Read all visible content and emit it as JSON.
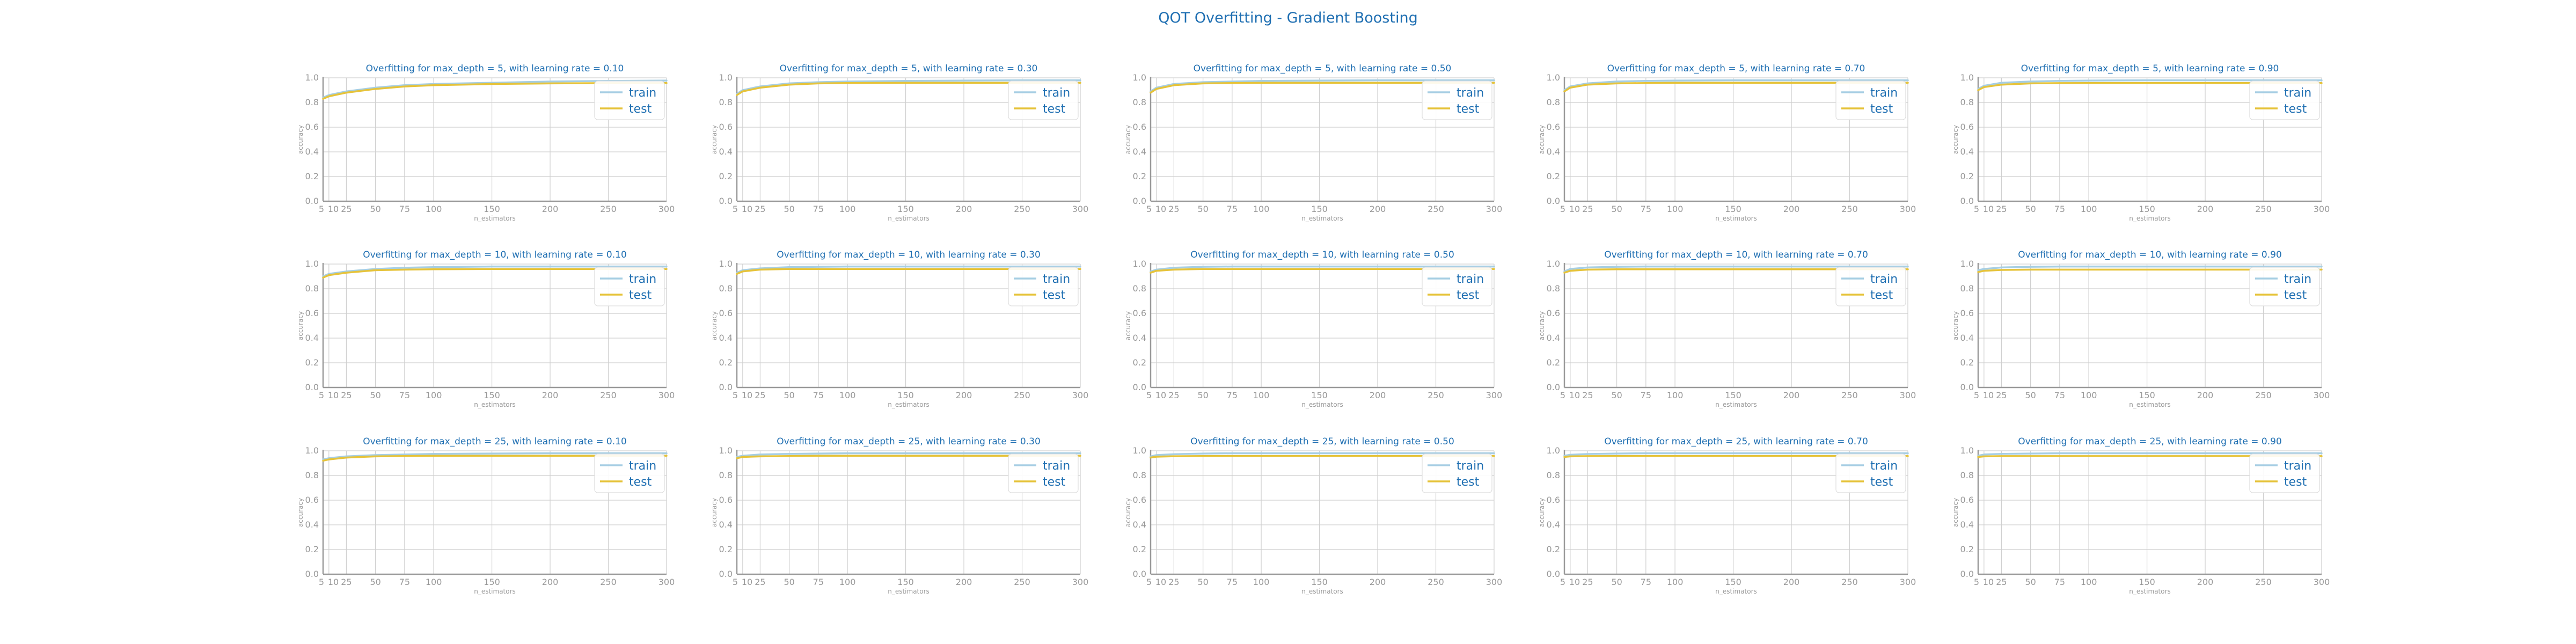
{
  "chart_data": {
    "title": "QOT Overfitting - Gradient Boosting",
    "type": "line",
    "rows": 3,
    "cols": 5,
    "xlabel": "n_estimators",
    "ylabel": "accuracy",
    "xlim": [
      5,
      300
    ],
    "ylim": [
      0,
      1.0
    ],
    "x_ticks": [
      5,
      10,
      25,
      50,
      75,
      100,
      150,
      200,
      250,
      300
    ],
    "y_ticks": [
      0.0,
      0.2,
      0.4,
      0.6,
      0.8,
      1.0
    ],
    "y_tick_labels": [
      "0.0",
      "0.2",
      "0.4",
      "0.6",
      "0.8",
      "1.0"
    ],
    "grid": true,
    "legend_position": "upper-right",
    "colors": {
      "train": "#a6cee3",
      "test": "#e6c33a"
    },
    "x": [
      5,
      10,
      25,
      50,
      75,
      100,
      150,
      200,
      250,
      300
    ],
    "panels": [
      {
        "title": "Overfitting for max_depth = 5, with learning rate = 0.10",
        "series": [
          {
            "name": "train",
            "values": [
              0.84,
              0.86,
              0.89,
              0.92,
              0.94,
              0.95,
              0.96,
              0.97,
              0.975,
              0.978
            ]
          },
          {
            "name": "test",
            "values": [
              0.83,
              0.85,
              0.88,
              0.91,
              0.93,
              0.94,
              0.95,
              0.955,
              0.957,
              0.958
            ]
          }
        ]
      },
      {
        "title": "Overfitting for max_depth = 5, with learning rate = 0.30",
        "series": [
          {
            "name": "train",
            "values": [
              0.87,
              0.9,
              0.93,
              0.955,
              0.965,
              0.97,
              0.975,
              0.978,
              0.98,
              0.98
            ]
          },
          {
            "name": "test",
            "values": [
              0.86,
              0.89,
              0.92,
              0.945,
              0.955,
              0.958,
              0.96,
              0.96,
              0.96,
              0.96
            ]
          }
        ]
      },
      {
        "title": "Overfitting for max_depth = 5, with learning rate = 0.50",
        "series": [
          {
            "name": "train",
            "values": [
              0.89,
              0.92,
              0.95,
              0.965,
              0.97,
              0.975,
              0.978,
              0.98,
              0.98,
              0.98
            ]
          },
          {
            "name": "test",
            "values": [
              0.88,
              0.91,
              0.94,
              0.955,
              0.958,
              0.96,
              0.96,
              0.96,
              0.96,
              0.96
            ]
          }
        ]
      },
      {
        "title": "Overfitting for max_depth = 5, with learning rate = 0.70",
        "series": [
          {
            "name": "train",
            "values": [
              0.9,
              0.93,
              0.955,
              0.97,
              0.975,
              0.978,
              0.98,
              0.98,
              0.98,
              0.98
            ]
          },
          {
            "name": "test",
            "values": [
              0.89,
              0.92,
              0.945,
              0.955,
              0.958,
              0.96,
              0.96,
              0.96,
              0.96,
              0.96
            ]
          }
        ]
      },
      {
        "title": "Overfitting for max_depth = 5, with learning rate = 0.90",
        "series": [
          {
            "name": "train",
            "values": [
              0.91,
              0.935,
              0.96,
              0.97,
              0.975,
              0.978,
              0.98,
              0.98,
              0.98,
              0.98
            ]
          },
          {
            "name": "test",
            "values": [
              0.9,
              0.925,
              0.945,
              0.955,
              0.957,
              0.958,
              0.958,
              0.958,
              0.958,
              0.958
            ]
          }
        ]
      },
      {
        "title": "Overfitting for max_depth = 10, with learning rate = 0.10",
        "series": [
          {
            "name": "train",
            "values": [
              0.9,
              0.92,
              0.94,
              0.96,
              0.97,
              0.975,
              0.98,
              0.98,
              0.98,
              0.98
            ]
          },
          {
            "name": "test",
            "values": [
              0.89,
              0.91,
              0.93,
              0.95,
              0.955,
              0.958,
              0.96,
              0.96,
              0.96,
              0.96
            ]
          }
        ]
      },
      {
        "title": "Overfitting for max_depth = 10, with learning rate = 0.30",
        "series": [
          {
            "name": "train",
            "values": [
              0.93,
              0.95,
              0.965,
              0.975,
              0.978,
              0.98,
              0.98,
              0.98,
              0.98,
              0.98
            ]
          },
          {
            "name": "test",
            "values": [
              0.92,
              0.94,
              0.955,
              0.96,
              0.96,
              0.96,
              0.96,
              0.96,
              0.96,
              0.96
            ]
          }
        ]
      },
      {
        "title": "Overfitting for max_depth = 10, with learning rate = 0.50",
        "series": [
          {
            "name": "train",
            "values": [
              0.94,
              0.955,
              0.97,
              0.978,
              0.98,
              0.98,
              0.98,
              0.98,
              0.98,
              0.98
            ]
          },
          {
            "name": "test",
            "values": [
              0.93,
              0.945,
              0.955,
              0.96,
              0.96,
              0.96,
              0.96,
              0.96,
              0.96,
              0.96
            ]
          }
        ]
      },
      {
        "title": "Overfitting for max_depth = 10, with learning rate = 0.70",
        "series": [
          {
            "name": "train",
            "values": [
              0.94,
              0.96,
              0.972,
              0.978,
              0.98,
              0.98,
              0.98,
              0.98,
              0.98,
              0.98
            ]
          },
          {
            "name": "test",
            "values": [
              0.93,
              0.945,
              0.955,
              0.958,
              0.958,
              0.958,
              0.958,
              0.958,
              0.958,
              0.958
            ]
          }
        ]
      },
      {
        "title": "Overfitting for max_depth = 10, with learning rate = 0.90",
        "series": [
          {
            "name": "train",
            "values": [
              0.95,
              0.96,
              0.972,
              0.978,
              0.98,
              0.98,
              0.98,
              0.98,
              0.98,
              0.98
            ]
          },
          {
            "name": "test",
            "values": [
              0.935,
              0.945,
              0.952,
              0.955,
              0.955,
              0.955,
              0.955,
              0.955,
              0.955,
              0.955
            ]
          }
        ]
      },
      {
        "title": "Overfitting for max_depth = 25, with learning rate = 0.10",
        "series": [
          {
            "name": "train",
            "values": [
              0.93,
              0.94,
              0.955,
              0.965,
              0.97,
              0.975,
              0.978,
              0.98,
              0.98,
              0.98
            ]
          },
          {
            "name": "test",
            "values": [
              0.92,
              0.93,
              0.945,
              0.955,
              0.958,
              0.96,
              0.96,
              0.96,
              0.96,
              0.96
            ]
          }
        ]
      },
      {
        "title": "Overfitting for max_depth = 25, with learning rate = 0.30",
        "series": [
          {
            "name": "train",
            "values": [
              0.95,
              0.96,
              0.97,
              0.975,
              0.978,
              0.98,
              0.98,
              0.98,
              0.98,
              0.98
            ]
          },
          {
            "name": "test",
            "values": [
              0.94,
              0.95,
              0.955,
              0.958,
              0.96,
              0.96,
              0.96,
              0.96,
              0.96,
              0.96
            ]
          }
        ]
      },
      {
        "title": "Overfitting for max_depth = 25, with learning rate = 0.50",
        "series": [
          {
            "name": "train",
            "values": [
              0.955,
              0.965,
              0.972,
              0.978,
              0.98,
              0.98,
              0.98,
              0.98,
              0.98,
              0.98
            ]
          },
          {
            "name": "test",
            "values": [
              0.945,
              0.952,
              0.956,
              0.958,
              0.958,
              0.958,
              0.958,
              0.958,
              0.958,
              0.958
            ]
          }
        ]
      },
      {
        "title": "Overfitting for max_depth = 25, with learning rate = 0.70",
        "series": [
          {
            "name": "train",
            "values": [
              0.96,
              0.968,
              0.974,
              0.978,
              0.98,
              0.98,
              0.98,
              0.98,
              0.98,
              0.98
            ]
          },
          {
            "name": "test",
            "values": [
              0.95,
              0.955,
              0.957,
              0.958,
              0.958,
              0.958,
              0.958,
              0.958,
              0.958,
              0.958
            ]
          }
        ]
      },
      {
        "title": "Overfitting for max_depth = 25, with learning rate = 0.90",
        "series": [
          {
            "name": "train",
            "values": [
              0.96,
              0.97,
              0.975,
              0.978,
              0.98,
              0.98,
              0.98,
              0.98,
              0.98,
              0.98
            ]
          },
          {
            "name": "test",
            "values": [
              0.95,
              0.955,
              0.957,
              0.957,
              0.957,
              0.957,
              0.957,
              0.957,
              0.957,
              0.957
            ]
          }
        ]
      }
    ]
  }
}
